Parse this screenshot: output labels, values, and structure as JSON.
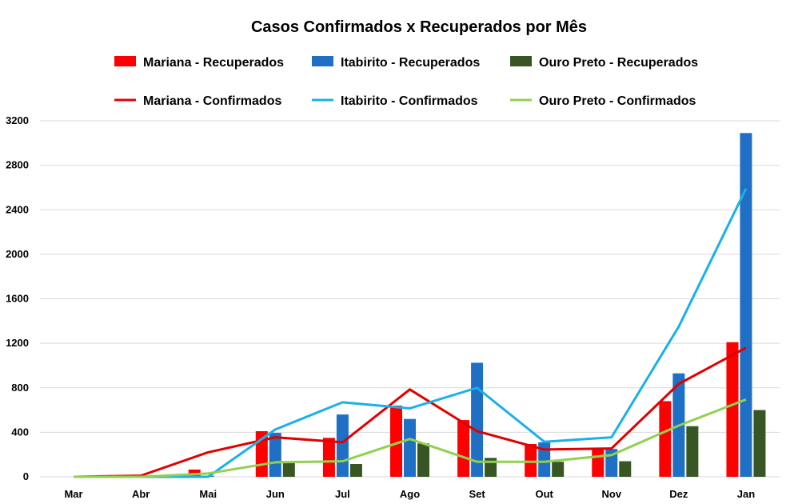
{
  "chart_data": {
    "type": "bar",
    "title": "Casos Confirmados x Recuperados por Mês",
    "xlabel": "",
    "ylabel": "",
    "ylim": [
      0,
      3200
    ],
    "yticks": [
      0,
      400,
      800,
      1200,
      1600,
      2000,
      2400,
      2800,
      3200
    ],
    "grid": true,
    "legend_position": "top",
    "categories": [
      "Mar",
      "Abr",
      "Mai",
      "Jun",
      "Jul",
      "Ago",
      "Set",
      "Out",
      "Nov",
      "Dez",
      "Jan"
    ],
    "bar_series": [
      {
        "name": "Mariana - Recuperados",
        "color": "#ff0000",
        "values": [
          0,
          0,
          65,
          410,
          350,
          640,
          510,
          295,
          255,
          680,
          1210
        ]
      },
      {
        "name": "Itabirito - Recuperados",
        "color": "#1f6fc4",
        "values": [
          0,
          0,
          10,
          395,
          560,
          520,
          1025,
          310,
          250,
          930,
          3090
        ]
      },
      {
        "name": "Ouro Preto - Recuperados",
        "color": "#375623",
        "values": [
          0,
          0,
          0,
          125,
          115,
          300,
          170,
          135,
          140,
          455,
          600
        ]
      }
    ],
    "line_series": [
      {
        "name": "Mariana - Confirmados",
        "color": "#e00000",
        "values": [
          0,
          10,
          220,
          355,
          310,
          785,
          410,
          245,
          255,
          835,
          1160
        ]
      },
      {
        "name": "Itabirito - Confirmados",
        "color": "#1ab0e8",
        "values": [
          0,
          0,
          0,
          425,
          670,
          615,
          800,
          315,
          355,
          1350,
          2590
        ]
      },
      {
        "name": "Ouro Preto - Confirmados",
        "color": "#92d050",
        "values": [
          0,
          0,
          30,
          130,
          140,
          340,
          135,
          135,
          195,
          460,
          695
        ]
      }
    ]
  }
}
